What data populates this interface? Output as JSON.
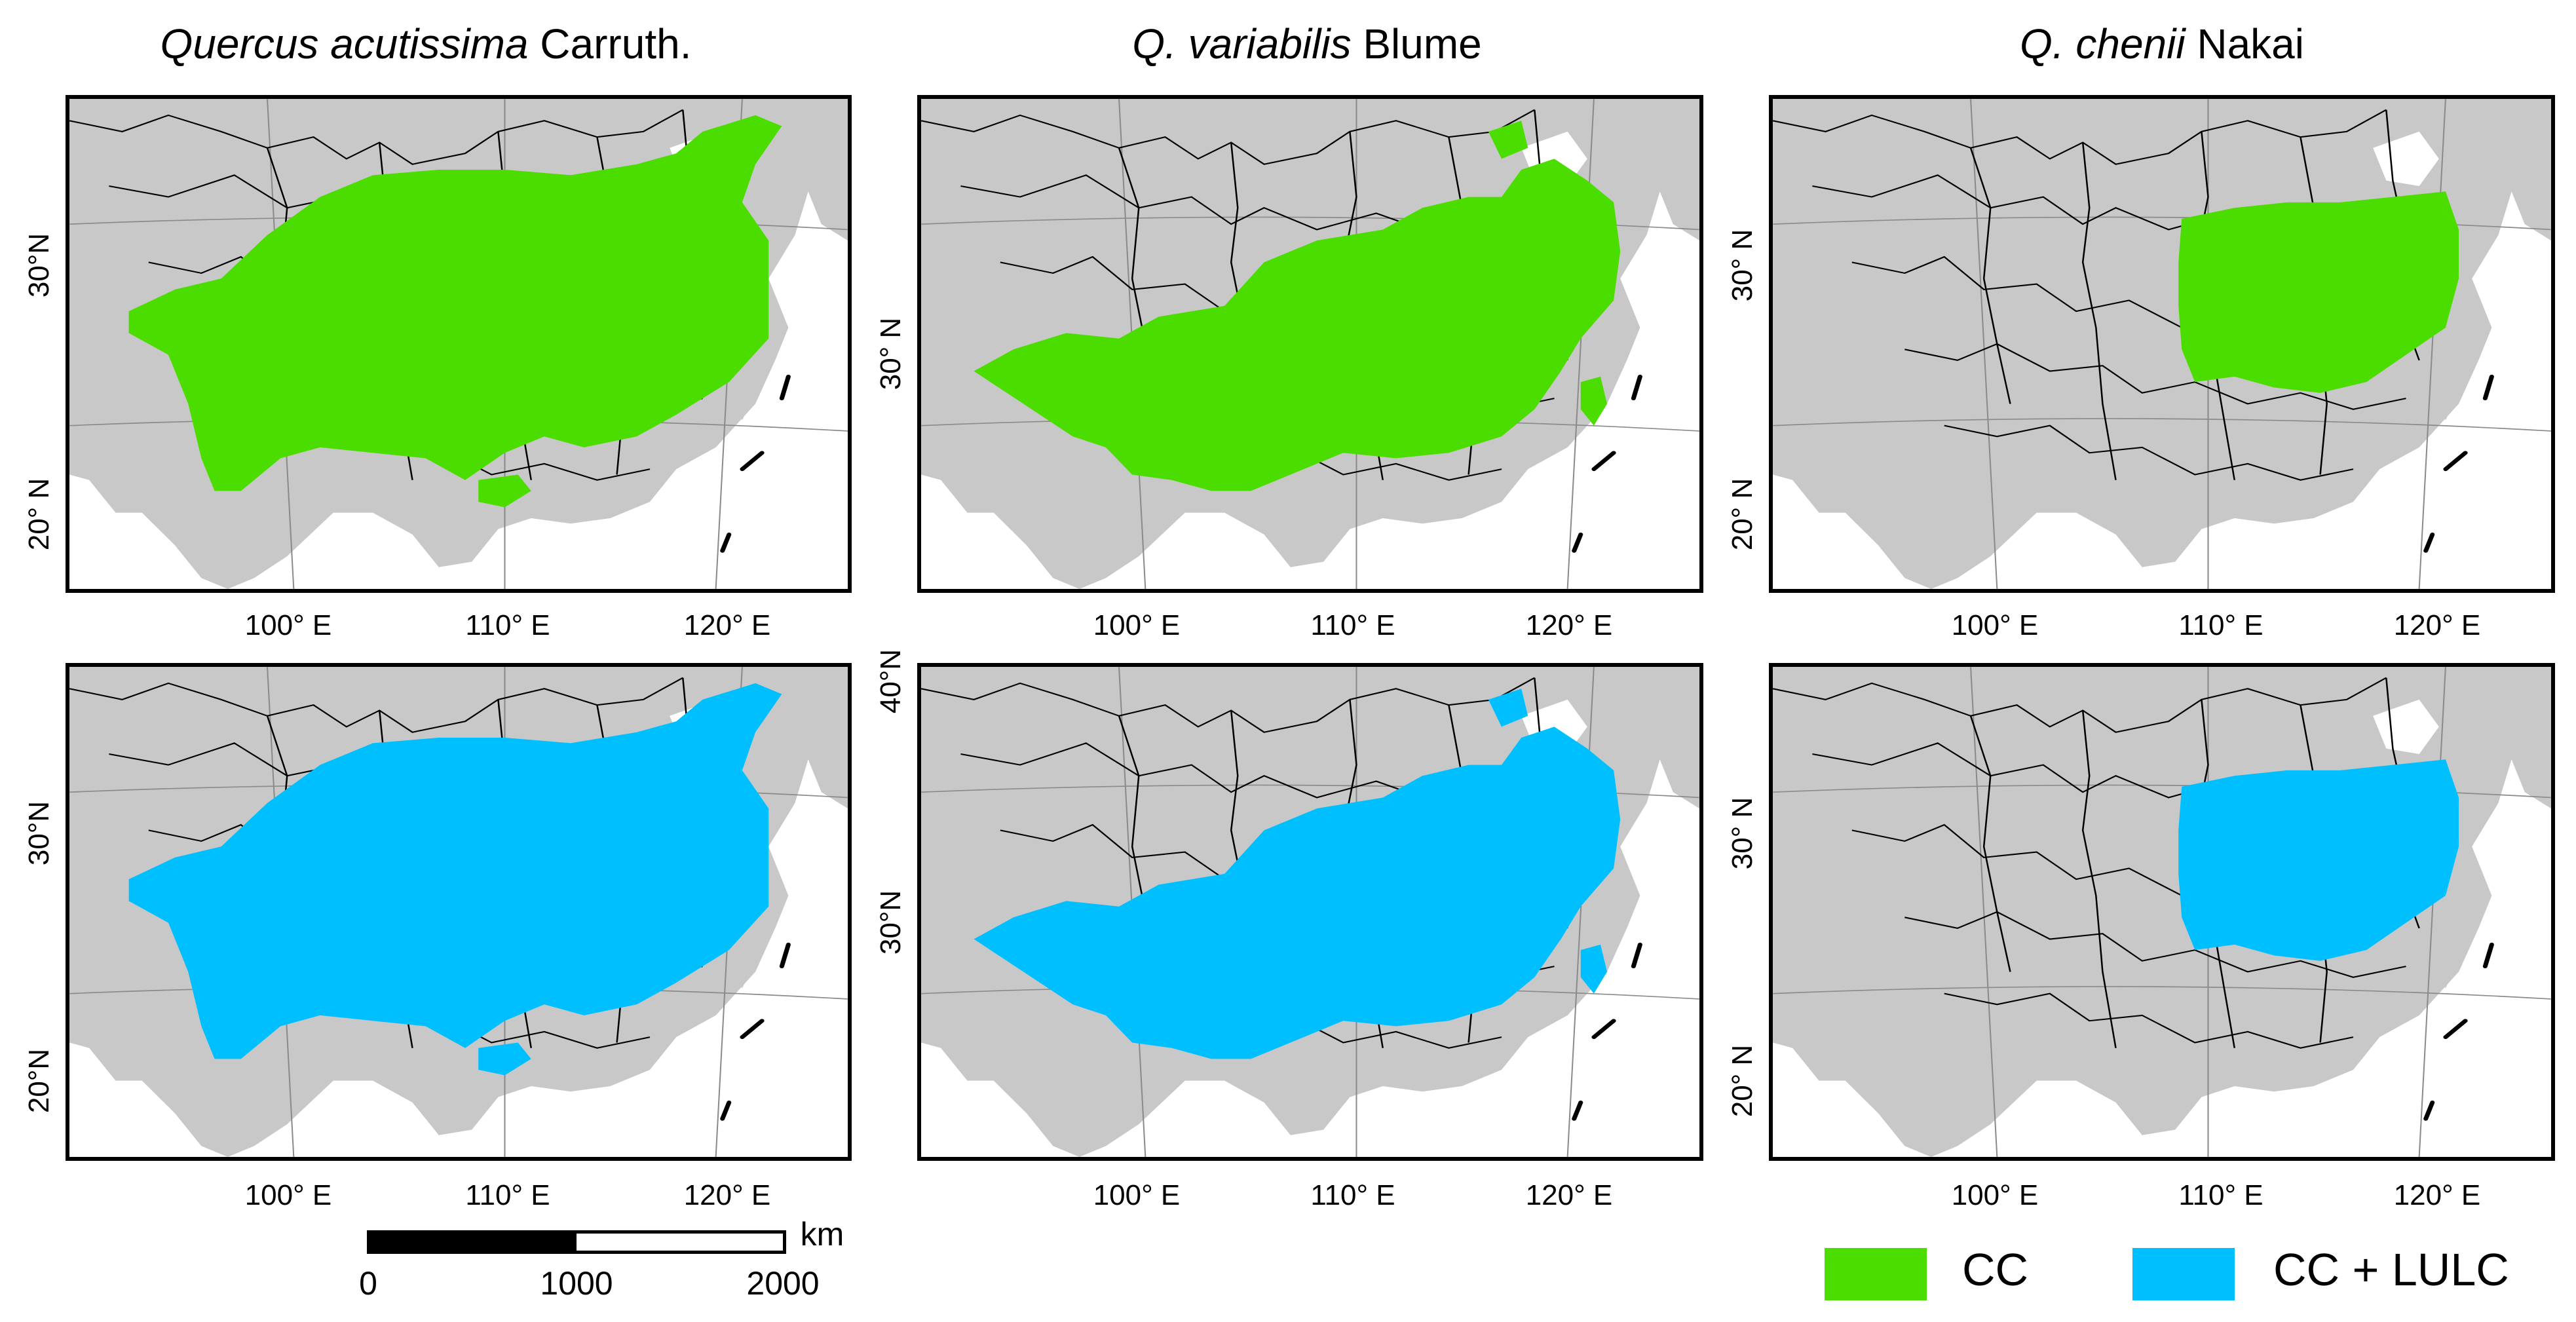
{
  "titles": [
    {
      "italic": "Quercus acutissima",
      "rest": " Carruth."
    },
    {
      "italic": "Q. variabilis",
      "rest": " Blume"
    },
    {
      "italic": "Q. chenii",
      "rest": " Nakai"
    }
  ],
  "x_ticks": [
    "100° E",
    "110° E",
    "120° E"
  ],
  "y_ticks": {
    "col1_top": [
      "30°N",
      "20° N"
    ],
    "col2_top": [
      "30° N"
    ],
    "col3_top": [
      "30° N",
      "20° N"
    ],
    "col1_bottom": [
      "30°N",
      "20°N"
    ],
    "col2_bottom": [
      "40°N",
      "30°N"
    ],
    "col3_bottom": [
      "30° N",
      "20° N"
    ]
  },
  "scale_bar": {
    "labels": [
      "0",
      "1000",
      "2000"
    ],
    "unit": "km"
  },
  "legend": [
    {
      "label": "CC",
      "color": "#4cdd00"
    },
    {
      "label": "CC + LULC",
      "color": "#00bfff"
    }
  ],
  "colors": {
    "land": "#c8c8c8",
    "sea": "#ffffff",
    "cc": "#4cdd00",
    "cc_lulc": "#00bfff"
  }
}
